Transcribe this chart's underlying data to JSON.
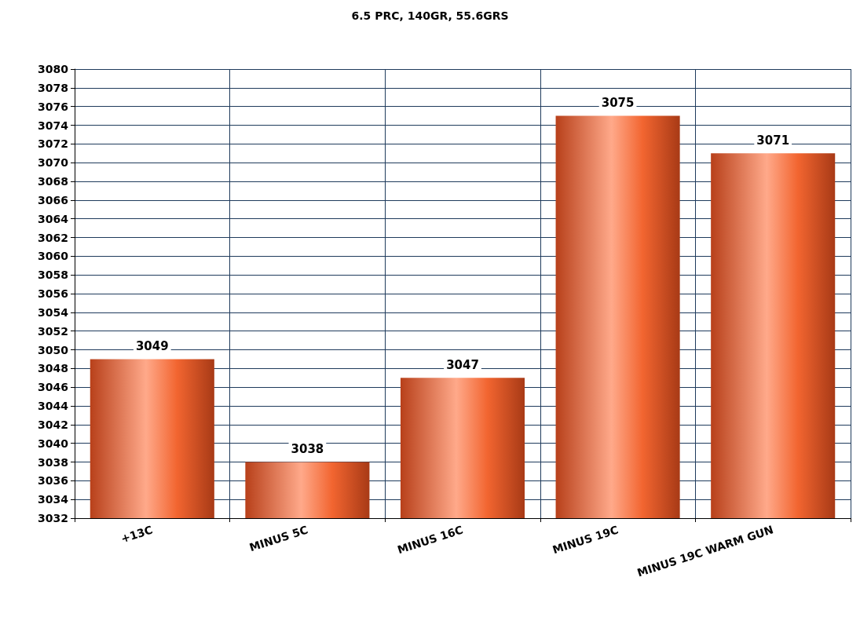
{
  "chart_data": {
    "type": "bar",
    "title": "6.5 PRC, 140GR, 55.6GRS",
    "categories": [
      "+13C",
      "MINUS 5C",
      "MINUS 16C",
      "MINUS 19C",
      "MINUS 19C WARM GUN"
    ],
    "values": [
      3049,
      3038,
      3047,
      3075,
      3071
    ],
    "color": "#f26530",
    "ylim": [
      3032,
      3080
    ],
    "yticks": [
      3032,
      3034,
      3036,
      3038,
      3040,
      3042,
      3044,
      3046,
      3048,
      3050,
      3052,
      3054,
      3056,
      3058,
      3060,
      3062,
      3064,
      3066,
      3068,
      3070,
      3072,
      3074,
      3076,
      3078,
      3080
    ],
    "data_labels": true,
    "grid": true
  }
}
